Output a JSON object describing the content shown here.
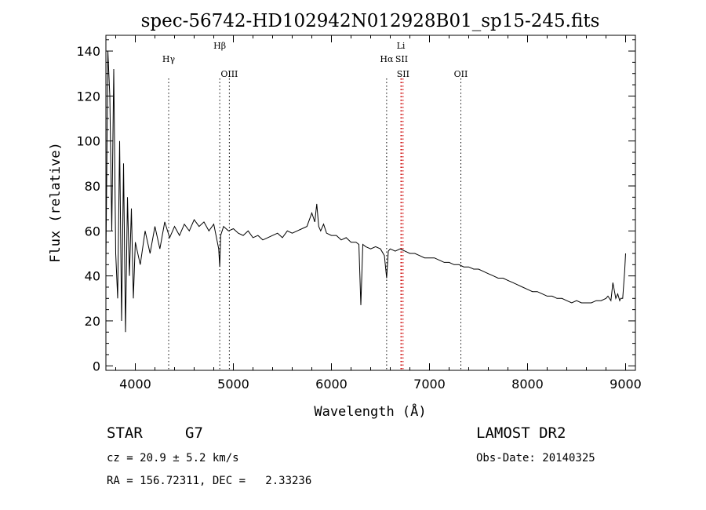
{
  "chart_data": {
    "type": "line",
    "title": "spec-56742-HD102942N012928B01_sp15-245.fits",
    "xlabel": "Wavelength (Å)",
    "ylabel": "Flux (relative)",
    "xlim": [
      3700,
      9100
    ],
    "ylim": [
      -2,
      147
    ],
    "xticks": [
      4000,
      5000,
      6000,
      7000,
      8000,
      9000
    ],
    "xtick_labels": [
      "4000",
      "5000",
      "6000",
      "7000",
      "8000",
      "9000"
    ],
    "yticks": [
      0,
      20,
      40,
      60,
      80,
      100,
      120,
      140
    ],
    "ytick_labels": [
      "0",
      "20",
      "40",
      "60",
      "80",
      "100",
      "120",
      "140"
    ],
    "grid": false,
    "series": [
      {
        "x": [
          3700,
          3720,
          3740,
          3760,
          3780,
          3800,
          3820,
          3840,
          3860,
          3880,
          3900,
          3920,
          3940,
          3960,
          3980,
          4000,
          4050,
          4100,
          4150,
          4200,
          4250,
          4300,
          4350,
          4400,
          4450,
          4500,
          4550,
          4600,
          4650,
          4700,
          4750,
          4800,
          4850,
          4861,
          4870,
          4900,
          4950,
          5000,
          5050,
          5100,
          5150,
          5200,
          5250,
          5300,
          5350,
          5400,
          5450,
          5500,
          5550,
          5600,
          5650,
          5700,
          5750,
          5800,
          5830,
          5850,
          5870,
          5890,
          5920,
          5950,
          6000,
          6050,
          6100,
          6150,
          6200,
          6250,
          6280,
          6300,
          6320,
          6350,
          6400,
          6450,
          6500,
          6540,
          6563,
          6580,
          6600,
          6650,
          6700,
          6750,
          6800,
          6850,
          6900,
          6950,
          7000,
          7050,
          7100,
          7150,
          7200,
          7250,
          7300,
          7350,
          7400,
          7450,
          7500,
          7550,
          7600,
          7650,
          7700,
          7750,
          7800,
          7850,
          7900,
          7950,
          8000,
          8050,
          8100,
          8150,
          8200,
          8250,
          8300,
          8350,
          8400,
          8450,
          8500,
          8550,
          8600,
          8650,
          8700,
          8750,
          8800,
          8820,
          8850,
          8870,
          8900,
          8920,
          8940,
          8950,
          8970,
          8990,
          9000
        ],
        "y": [
          45,
          140,
          120,
          60,
          132,
          50,
          30,
          100,
          20,
          90,
          15,
          75,
          40,
          70,
          30,
          55,
          45,
          60,
          50,
          62,
          52,
          64,
          57,
          62,
          58,
          63,
          60,
          65,
          62,
          64,
          60,
          63,
          52,
          44,
          58,
          62,
          60,
          61,
          59,
          58,
          60,
          57,
          58,
          56,
          57,
          58,
          59,
          57,
          60,
          59,
          60,
          61,
          62,
          68,
          64,
          72,
          62,
          60,
          63,
          59,
          58,
          58,
          56,
          57,
          55,
          55,
          54,
          27,
          54,
          53,
          52,
          53,
          52,
          49,
          39,
          51,
          52,
          51,
          52,
          51,
          50,
          50,
          49,
          48,
          48,
          48,
          47,
          46,
          46,
          45,
          45,
          44,
          44,
          43,
          43,
          42,
          41,
          40,
          39,
          39,
          38,
          37,
          36,
          35,
          34,
          33,
          33,
          32,
          31,
          31,
          30,
          30,
          29,
          28,
          29,
          28,
          28,
          28,
          29,
          29,
          30,
          31,
          29,
          37,
          30,
          32,
          29,
          30,
          30,
          42,
          50
        ]
      }
    ],
    "lines": [
      {
        "name": "Hγ",
        "x": 4340
      },
      {
        "name": "Hβ",
        "x": 4861
      },
      {
        "name": "OIII",
        "x": 4959
      },
      {
        "name": "Hα",
        "x": 6563
      },
      {
        "name": "Li",
        "x": 6708
      },
      {
        "name": "SII",
        "x": 6716
      },
      {
        "name": "SII",
        "x": 6731
      },
      {
        "name": "OII",
        "x": 7320
      }
    ]
  },
  "info": {
    "class": "STAR",
    "subclass": "G7",
    "survey": "LAMOST DR2",
    "cz": "cz = 20.9 ± 5.2 km/s",
    "obs_date": "Obs-Date: 20140325",
    "coords": "RA = 156.72311, DEC =   2.33236"
  }
}
